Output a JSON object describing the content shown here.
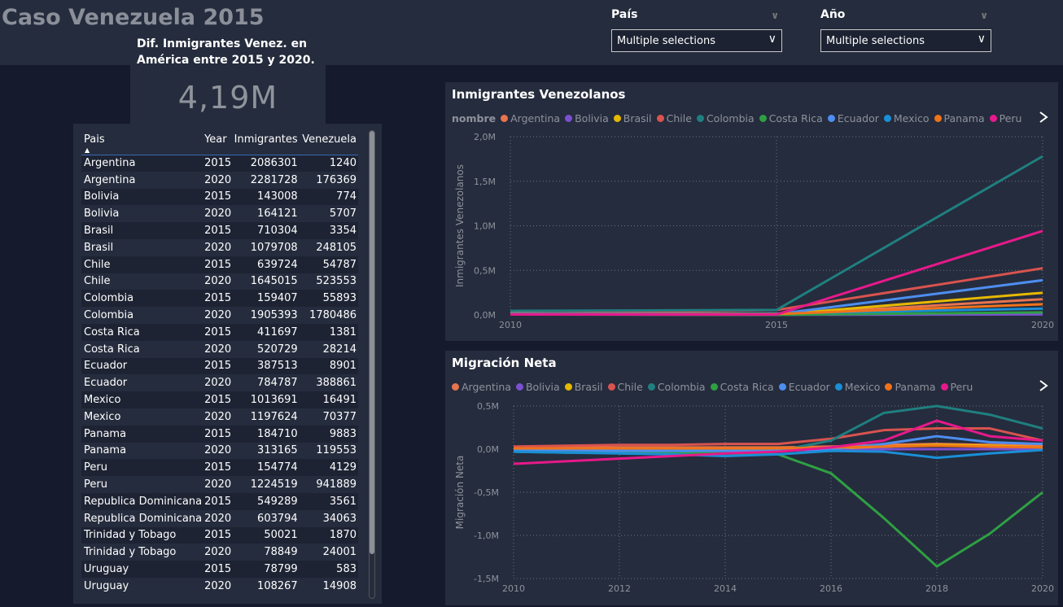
{
  "page": {
    "title": "Caso Venezuela 2015"
  },
  "kpi": {
    "label": "Dif. Inmigrantes Venez. en América entre 2015 y 2020.",
    "value": "4,19M"
  },
  "slicers": [
    {
      "title": "País",
      "value": "Multiple selections"
    },
    {
      "title": "Año",
      "value": "Multiple selections"
    }
  ],
  "table": {
    "columns": [
      "Pais",
      "Year",
      "Inmigrantes",
      "Venezuela"
    ],
    "rows": [
      [
        "Argentina",
        "2015",
        "2086301",
        "1240"
      ],
      [
        "Argentina",
        "2020",
        "2281728",
        "176369"
      ],
      [
        "Bolivia",
        "2015",
        "143008",
        "774"
      ],
      [
        "Bolivia",
        "2020",
        "164121",
        "5707"
      ],
      [
        "Brasil",
        "2015",
        "710304",
        "3354"
      ],
      [
        "Brasil",
        "2020",
        "1079708",
        "248105"
      ],
      [
        "Chile",
        "2015",
        "639724",
        "54787"
      ],
      [
        "Chile",
        "2020",
        "1645015",
        "523553"
      ],
      [
        "Colombia",
        "2015",
        "159407",
        "55893"
      ],
      [
        "Colombia",
        "2020",
        "1905393",
        "1780486"
      ],
      [
        "Costa Rica",
        "2015",
        "411697",
        "1381"
      ],
      [
        "Costa Rica",
        "2020",
        "520729",
        "28214"
      ],
      [
        "Ecuador",
        "2015",
        "387513",
        "8901"
      ],
      [
        "Ecuador",
        "2020",
        "784787",
        "388861"
      ],
      [
        "Mexico",
        "2015",
        "1013691",
        "16491"
      ],
      [
        "Mexico",
        "2020",
        "1197624",
        "70377"
      ],
      [
        "Panama",
        "2015",
        "184710",
        "9883"
      ],
      [
        "Panama",
        "2020",
        "313165",
        "119553"
      ],
      [
        "Peru",
        "2015",
        "154774",
        "4129"
      ],
      [
        "Peru",
        "2020",
        "1224519",
        "941889"
      ],
      [
        "Republica Dominicana",
        "2015",
        "549289",
        "3561"
      ],
      [
        "Republica Dominicana",
        "2020",
        "603794",
        "34063"
      ],
      [
        "Trinidad y Tobago",
        "2015",
        "50021",
        "1870"
      ],
      [
        "Trinidad y Tobago",
        "2020",
        "78849",
        "24001"
      ],
      [
        "Uruguay",
        "2015",
        "78799",
        "583"
      ],
      [
        "Uruguay",
        "2020",
        "108267",
        "14908"
      ]
    ]
  },
  "colors": {
    "Argentina": "#e8744e",
    "Bolivia": "#7b4fd0",
    "Brasil": "#e6b800",
    "Chile": "#d9534f",
    "Colombia": "#1f7f7f",
    "Costa Rica": "#2ea043",
    "Ecuador": "#4d8ef0",
    "Mexico": "#1a8fd6",
    "Panama": "#f0731a",
    "Peru": "#e6198a"
  },
  "chart_data": [
    {
      "type": "line",
      "title": "Inmigrantes Venezolanos",
      "legend_title": "nombre",
      "ylabel": "Inmigrantes Venezolanos",
      "x": [
        2010,
        2015,
        2020
      ],
      "xticks": [
        "2010",
        "2015",
        "2020"
      ],
      "yticks": [
        "0,0M",
        "0,5M",
        "1,0M",
        "1,5M",
        "2,0M"
      ],
      "ylim": [
        0,
        2000000
      ],
      "series": [
        {
          "name": "Argentina",
          "values": [
            20000,
            1240,
            176369
          ]
        },
        {
          "name": "Bolivia",
          "values": [
            5000,
            774,
            5707
          ]
        },
        {
          "name": "Brasil",
          "values": [
            5000,
            3354,
            248105
          ]
        },
        {
          "name": "Chile",
          "values": [
            10000,
            54787,
            523553
          ]
        },
        {
          "name": "Colombia",
          "values": [
            45000,
            55893,
            1780486
          ]
        },
        {
          "name": "Costa Rica",
          "values": [
            5000,
            1381,
            28214
          ]
        },
        {
          "name": "Ecuador",
          "values": [
            5000,
            8901,
            388861
          ]
        },
        {
          "name": "Mexico",
          "values": [
            10000,
            16491,
            70377
          ]
        },
        {
          "name": "Panama",
          "values": [
            5000,
            9883,
            119553
          ]
        },
        {
          "name": "Peru",
          "values": [
            5000,
            4129,
            941889
          ]
        }
      ]
    },
    {
      "type": "line",
      "title": "Migración Neta",
      "ylabel": "Migración Neta",
      "x": [
        2010,
        2011,
        2012,
        2013,
        2014,
        2015,
        2016,
        2017,
        2018,
        2019,
        2020
      ],
      "xticks": [
        "2010",
        "2012",
        "2014",
        "2016",
        "2018",
        "2020"
      ],
      "yticks": [
        "-1,5M",
        "-1,0M",
        "-0,5M",
        "0,0M",
        "0,5M"
      ],
      "ylim": [
        -1500000,
        500000
      ],
      "series": [
        {
          "name": "Argentina",
          "values": [
            20000,
            20000,
            20000,
            20000,
            20000,
            20000,
            30000,
            50000,
            60000,
            50000,
            40000
          ]
        },
        {
          "name": "Bolivia",
          "values": [
            -10000,
            -10000,
            -10000,
            -10000,
            -10000,
            -10000,
            -5000,
            0,
            0,
            0,
            0
          ]
        },
        {
          "name": "Brasil",
          "values": [
            0,
            5000,
            5000,
            5000,
            5000,
            5000,
            10000,
            30000,
            50000,
            40000,
            20000
          ]
        },
        {
          "name": "Chile",
          "values": [
            30000,
            40000,
            50000,
            50000,
            60000,
            60000,
            120000,
            220000,
            240000,
            240000,
            100000
          ]
        },
        {
          "name": "Colombia",
          "values": [
            -20000,
            -20000,
            -20000,
            -20000,
            -20000,
            -20000,
            100000,
            420000,
            500000,
            400000,
            240000
          ]
        },
        {
          "name": "Costa Rica",
          "values": [
            -30000,
            -40000,
            -40000,
            -40000,
            -50000,
            -60000,
            -280000,
            -800000,
            -1360000,
            -980000,
            -500000
          ]
        },
        {
          "name": "Ecuador",
          "values": [
            -10000,
            -10000,
            -20000,
            -20000,
            -20000,
            -20000,
            0,
            60000,
            150000,
            80000,
            60000
          ]
        },
        {
          "name": "Mexico",
          "values": [
            -30000,
            -40000,
            -50000,
            -60000,
            -80000,
            -60000,
            -20000,
            -30000,
            -100000,
            -50000,
            -10000
          ]
        },
        {
          "name": "Panama",
          "values": [
            10000,
            10000,
            10000,
            10000,
            10000,
            10000,
            20000,
            30000,
            40000,
            30000,
            20000
          ]
        },
        {
          "name": "Peru",
          "values": [
            -170000,
            -140000,
            -110000,
            -80000,
            -50000,
            -30000,
            20000,
            100000,
            330000,
            150000,
            100000
          ]
        }
      ]
    }
  ]
}
